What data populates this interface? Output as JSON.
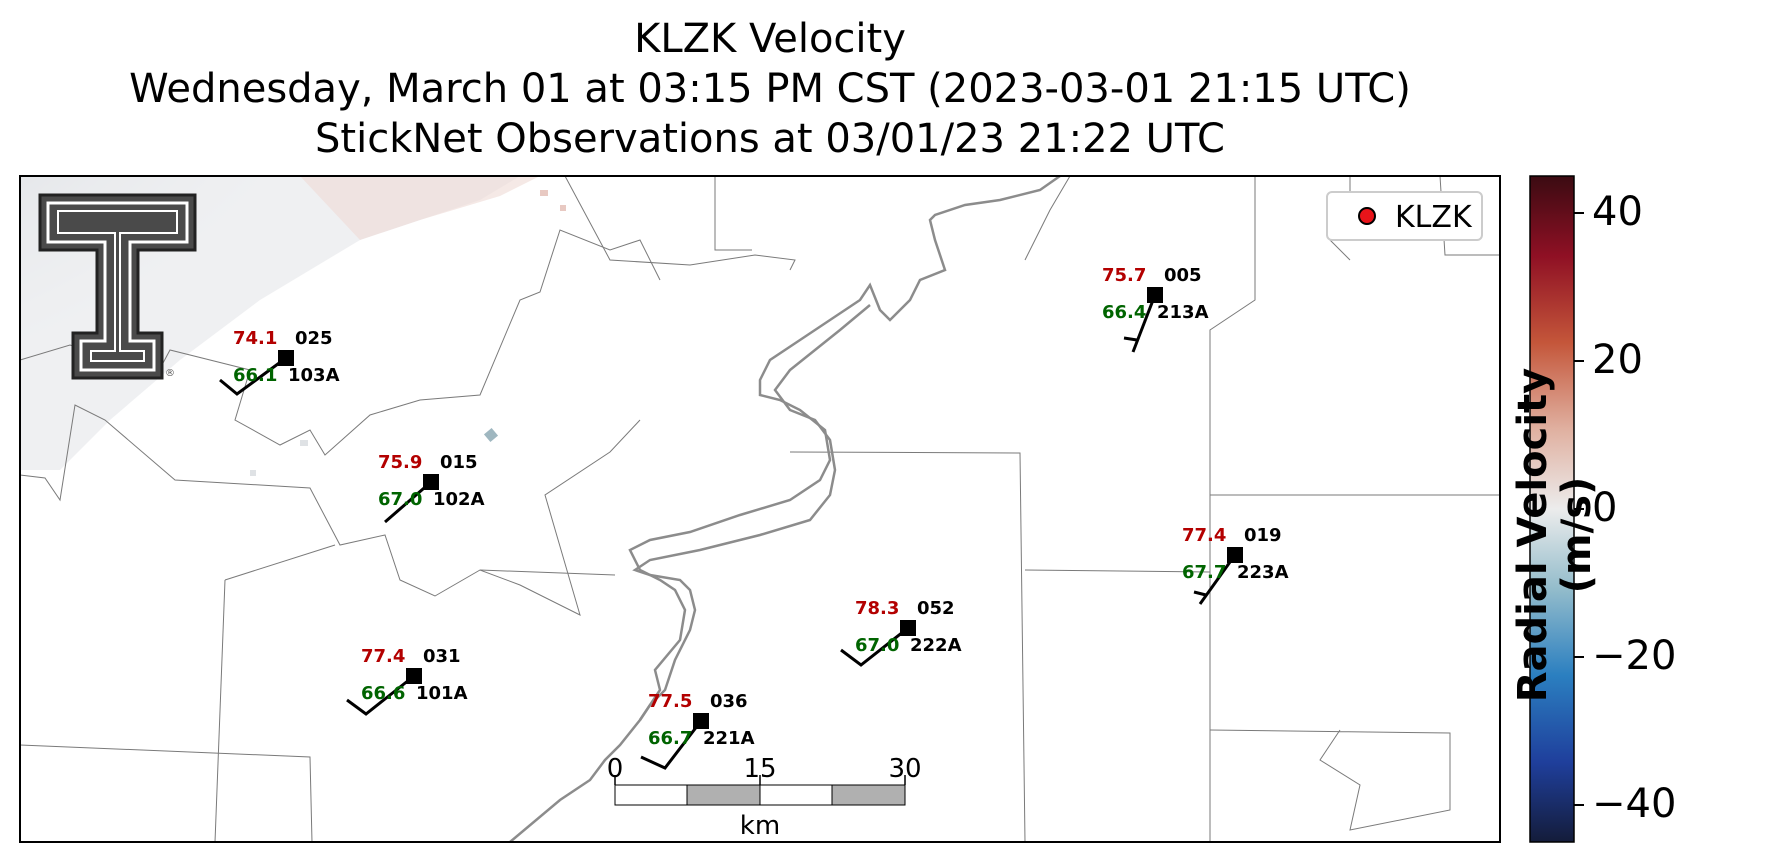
{
  "title": {
    "line1": "KLZK Velocity",
    "line2": "Wednesday, March 01 at 03:15 PM CST (2023-03-01 21:15 UTC)",
    "line3": "StickNet Observations at 03/01/23 21:22 UTC"
  },
  "legend": {
    "label": "KLZK",
    "marker_color": "#e8141a"
  },
  "colors": {
    "temperature": "#b30000",
    "dewpoint": "#006400",
    "station": "#000000"
  },
  "stations": [
    {
      "temp": "74.1",
      "dew": "66.1",
      "direction": "025",
      "id": "103A"
    },
    {
      "temp": "75.9",
      "dew": "67.0",
      "direction": "015",
      "id": "102A"
    },
    {
      "temp": "77.4",
      "dew": "66.6",
      "direction": "031",
      "id": "101A"
    },
    {
      "temp": "77.5",
      "dew": "66.7",
      "direction": "036",
      "id": "221A"
    },
    {
      "temp": "78.3",
      "dew": "67.0",
      "direction": "052",
      "id": "222A"
    },
    {
      "temp": "75.7",
      "dew": "66.4",
      "direction": "005",
      "id": "213A"
    },
    {
      "temp": "77.4",
      "dew": "67.7",
      "direction": "019",
      "id": "223A"
    }
  ],
  "scalebar": {
    "ticks": [
      "0",
      "15",
      "30"
    ],
    "unit": "km"
  },
  "colorbar": {
    "label": "Radial Velocity (m/s)",
    "ticks": [
      "40",
      "20",
      "0",
      "−20",
      "−40"
    ],
    "range": [
      -45,
      45
    ]
  },
  "logo": {
    "icon": "texas-tech-t-logo"
  }
}
